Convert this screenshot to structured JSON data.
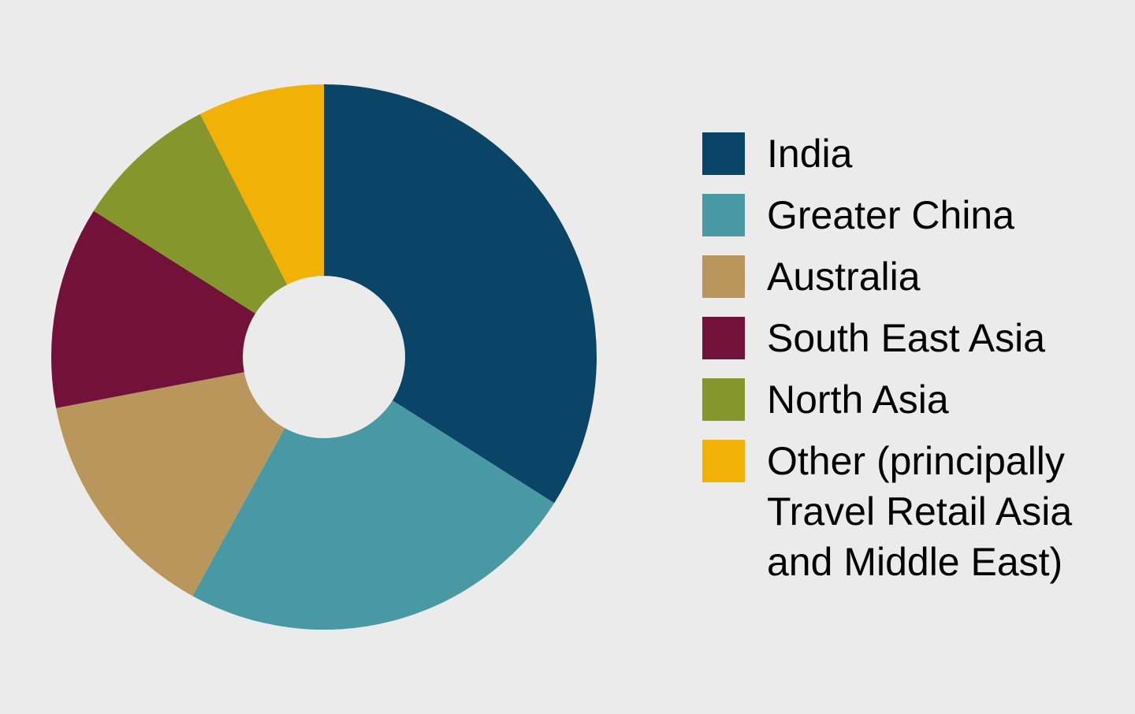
{
  "chart_data": {
    "type": "donut",
    "categories": [
      "India",
      "Greater China",
      "Australia",
      "South East Asia",
      "North Asia",
      "Other (principally Travel Retail Asia and Middle East)"
    ],
    "values": [
      34,
      24,
      14,
      12,
      8.5,
      7.5
    ],
    "colors": [
      "#0a4466",
      "#4899a3",
      "#b8965c",
      "#72123a",
      "#85962c",
      "#f1b106"
    ],
    "legend": "right"
  }
}
